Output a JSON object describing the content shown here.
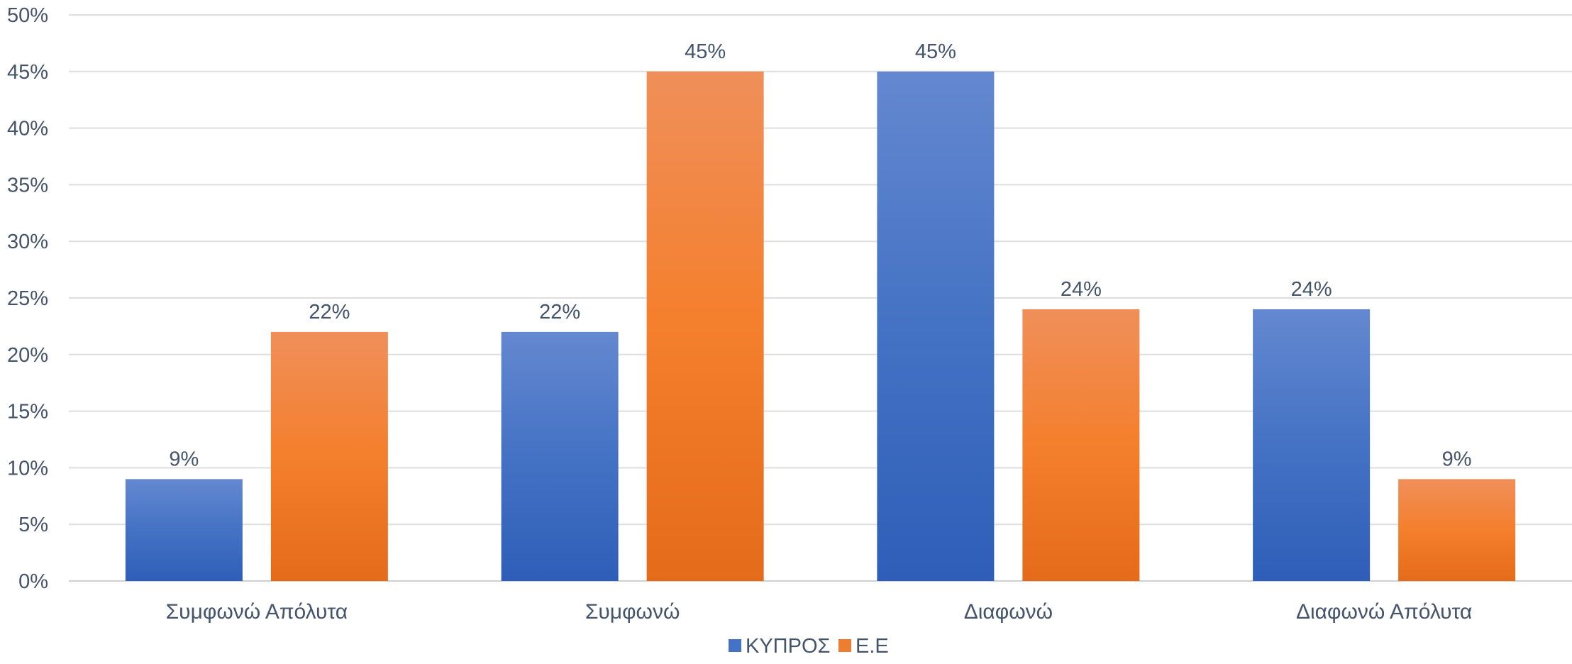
{
  "chart_data": {
    "type": "bar",
    "title": "",
    "xlabel": "",
    "ylabel": "",
    "categories": [
      "Συμφωνώ Απόλυτα",
      "Συμφωνώ",
      "Διαφωνώ",
      "Διαφωνώ Απόλυτα"
    ],
    "series": [
      {
        "name": "ΚΥΠΡΟΣ",
        "values": [
          9,
          22,
          45,
          24
        ],
        "color": "#4472c4"
      },
      {
        "name": "Ε.Ε",
        "values": [
          22,
          45,
          24,
          9
        ],
        "color": "#ed7d31"
      }
    ],
    "ylim": [
      0,
      50
    ],
    "yticks": [
      0,
      5,
      10,
      15,
      20,
      25,
      30,
      35,
      40,
      45,
      50
    ],
    "value_suffix": "%",
    "grid": true,
    "legend_position": "bottom"
  }
}
